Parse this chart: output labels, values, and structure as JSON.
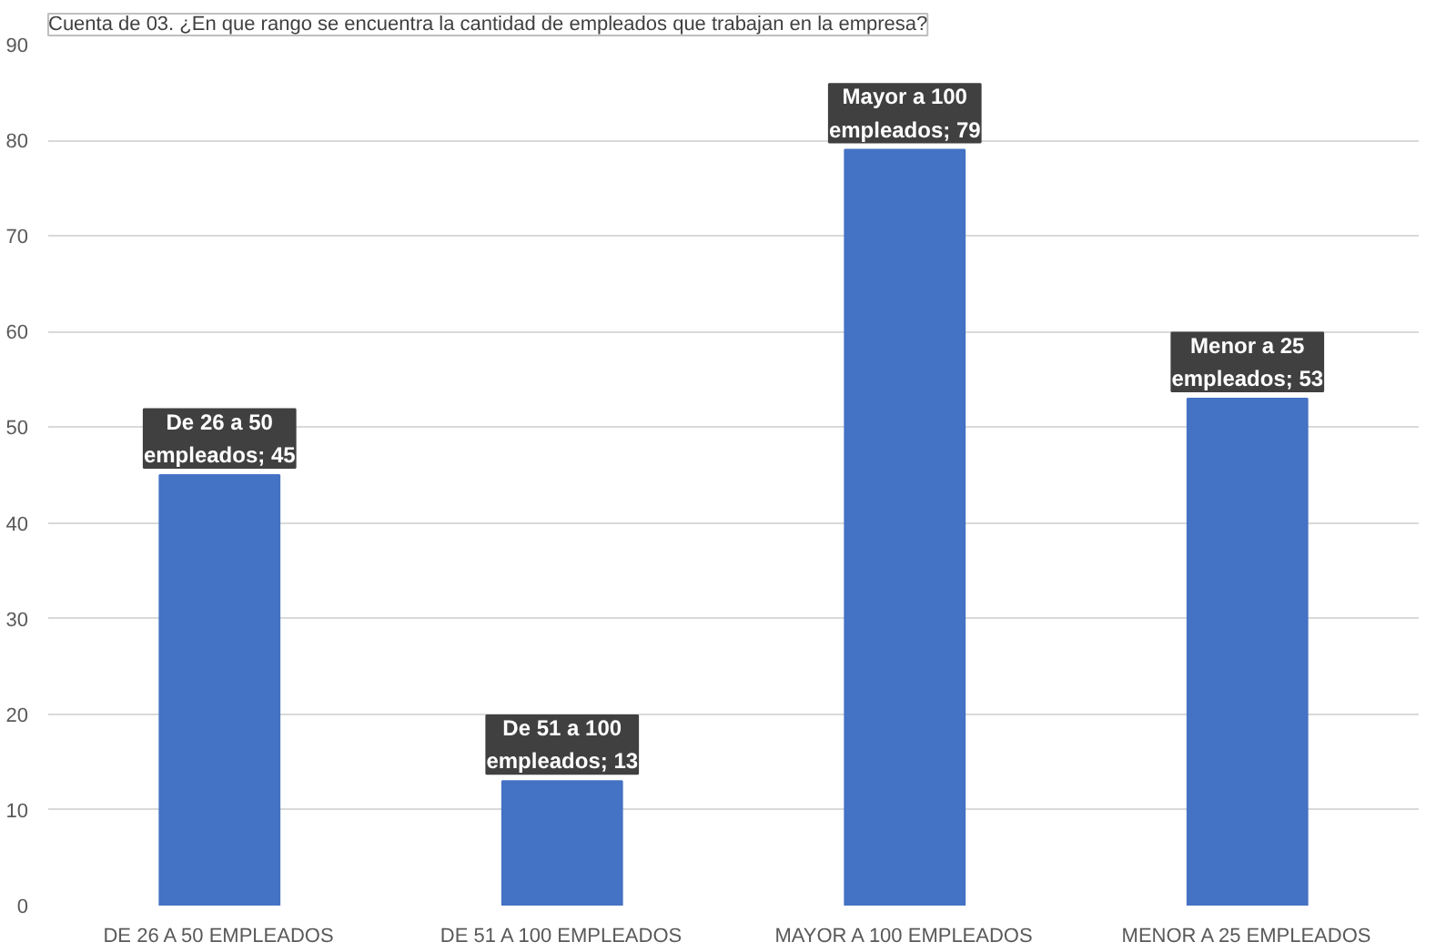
{
  "chart_data": {
    "type": "bar",
    "title": "Cuenta de 03. ¿En que rango se encuentra la cantidad de empleados que trabajan en la empresa?",
    "categories": [
      "DE 26 A 50 EMPLEADOS",
      "DE 51 A 100 EMPLEADOS",
      "MAYOR A 100 EMPLEADOS",
      "MENOR A 25 EMPLEADOS"
    ],
    "values": [
      45,
      13,
      79,
      53
    ],
    "value_labels": [
      "De 26 a 50\nempleados; 45",
      "De 51 a 100\nempleados; 13",
      "Mayor a 100\nempleados; 79",
      "Menor a 25\nempleados; 53"
    ],
    "color": "#4472c4",
    "ylim": [
      0,
      90
    ],
    "yticks": [
      0,
      10,
      20,
      30,
      40,
      50,
      60,
      70,
      80,
      90
    ],
    "grid": "y"
  }
}
